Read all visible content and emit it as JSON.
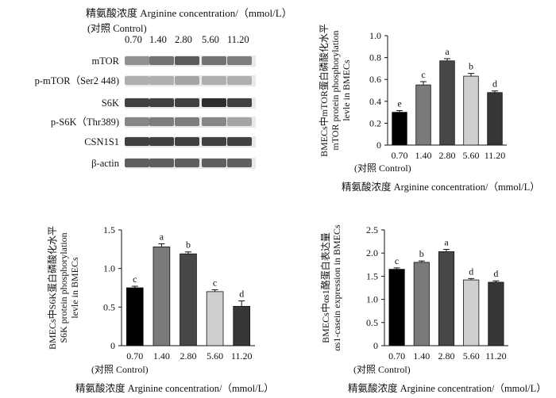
{
  "blot": {
    "title": "精氨酸浓度 Arginine concentration/（mmol/L）",
    "control_label": "(对照 Control)",
    "concentrations": [
      "0.70",
      "1.40",
      "2.80",
      "5.60",
      "11.20"
    ],
    "rows": [
      {
        "label": "mTOR",
        "intensity": [
          0.45,
          0.6,
          0.72,
          0.6,
          0.55
        ]
      },
      {
        "label": "p-mTOR（Ser2 448)",
        "intensity": [
          0.3,
          0.3,
          0.35,
          0.3,
          0.3
        ]
      },
      {
        "label": "S6K",
        "intensity": [
          0.85,
          0.85,
          0.85,
          0.95,
          0.85
        ]
      },
      {
        "label": "p-S6K（Thr389)",
        "intensity": [
          0.5,
          0.55,
          0.55,
          0.5,
          0.35
        ]
      },
      {
        "label": "CSN1S1",
        "intensity": [
          0.85,
          0.85,
          0.85,
          0.85,
          0.85
        ]
      },
      {
        "label": "β-actin",
        "intensity": [
          0.7,
          0.7,
          0.7,
          0.7,
          0.7
        ]
      }
    ]
  },
  "chart_data": [
    {
      "type": "bar",
      "ylabel_lines": [
        "BMECs中mTOR蛋白磷酸化水平",
        "mTOR protein phosphorylation",
        "levle in BMECs"
      ],
      "xlabel": "精氨酸浓度 Arginine concentration/（mmol/L）",
      "x_control_label": "(对照 Control)",
      "categories": [
        "0.70",
        "1.40",
        "2.80",
        "5.60",
        "11.20"
      ],
      "values": [
        0.3,
        0.55,
        0.77,
        0.63,
        0.48
      ],
      "errors": [
        0.015,
        0.03,
        0.02,
        0.025,
        0.015
      ],
      "letters": [
        "e",
        "c",
        "a",
        "b",
        "d"
      ],
      "ylim": [
        0,
        1.0
      ],
      "yticks": [
        "0",
        "0.2",
        "0.4",
        "0.6",
        "0.8",
        "1.0"
      ],
      "bar_colors": [
        "#000000",
        "#7a7a7a",
        "#474747",
        "#cfcfcf",
        "#363636"
      ]
    },
    {
      "type": "bar",
      "ylabel_lines": [
        "BMECs中S6K蛋白磷酸化水平",
        "S6K protein phosphorylation",
        "levle in BMECs"
      ],
      "xlabel": "精氨酸浓度 Arginine concentration/（mmol/L）",
      "x_control_label": "(对照 Control)",
      "categories": [
        "0.70",
        "1.40",
        "2.80",
        "5.60",
        "11.20"
      ],
      "values": [
        0.75,
        1.28,
        1.19,
        0.7,
        0.51
      ],
      "errors": [
        0.02,
        0.04,
        0.025,
        0.025,
        0.07
      ],
      "letters": [
        "c",
        "a",
        "b",
        "c",
        "d"
      ],
      "ylim": [
        0,
        1.5
      ],
      "yticks": [
        "0",
        "0.5",
        "1.0",
        "1.5"
      ],
      "bar_colors": [
        "#000000",
        "#7a7a7a",
        "#474747",
        "#cfcfcf",
        "#363636"
      ]
    },
    {
      "type": "bar",
      "ylabel_lines": [
        "BMECs中αs1酪蛋白表达量",
        "αs1-casein expression in BMECs"
      ],
      "xlabel": "精氨酸浓度 Arginine concentration/（mmol/L）",
      "x_control_label": "(对照 Control)",
      "categories": [
        "0.70",
        "1.40",
        "2.80",
        "5.60",
        "11.20"
      ],
      "values": [
        1.65,
        1.8,
        2.03,
        1.42,
        1.37
      ],
      "errors": [
        0.03,
        0.03,
        0.05,
        0.03,
        0.03
      ],
      "letters": [
        "c",
        "b",
        "a",
        "d",
        "d"
      ],
      "ylim": [
        0,
        2.5
      ],
      "yticks": [
        "0",
        "0.5",
        "1.0",
        "1.5",
        "2.0",
        "2.5"
      ],
      "bar_colors": [
        "#000000",
        "#7a7a7a",
        "#474747",
        "#cfcfcf",
        "#363636"
      ]
    }
  ]
}
